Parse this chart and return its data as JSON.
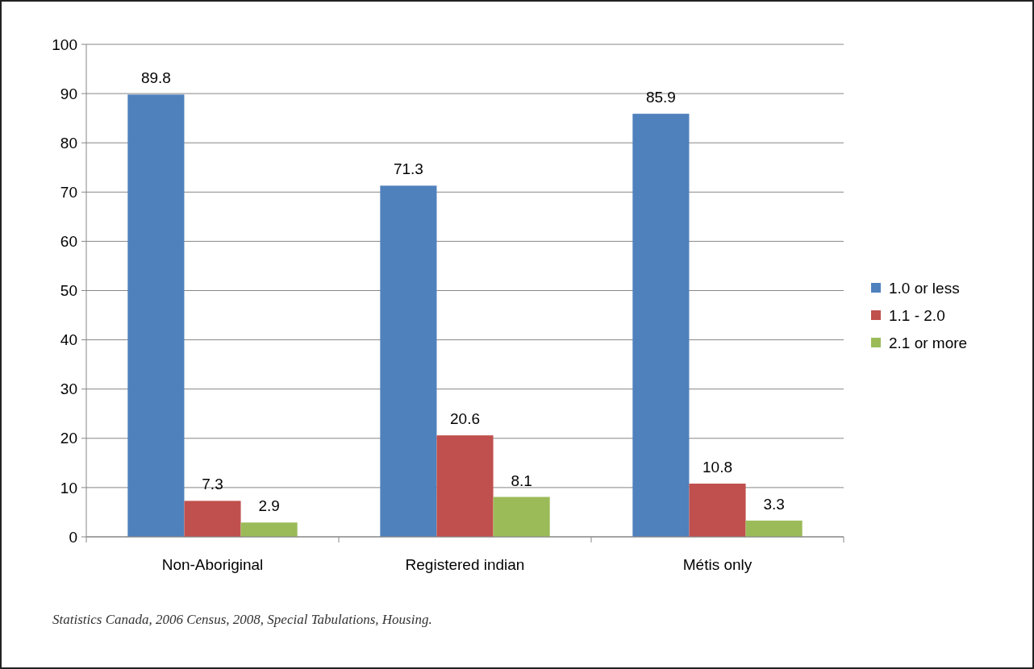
{
  "chart_data": {
    "type": "bar",
    "categories": [
      "Non-Aboriginal",
      "Registered indian",
      "Métis only"
    ],
    "series": [
      {
        "name": "1.0 or less",
        "color": "#4f81bd",
        "values": [
          89.8,
          71.3,
          85.9
        ]
      },
      {
        "name": "1.1 - 2.0",
        "color": "#c0504d",
        "values": [
          7.3,
          20.6,
          10.8
        ]
      },
      {
        "name": "2.1 or more",
        "color": "#9bbb59",
        "values": [
          2.9,
          8.1,
          3.3
        ]
      }
    ],
    "ylim": [
      0,
      100
    ],
    "yticks": [
      0,
      10,
      20,
      30,
      40,
      50,
      60,
      70,
      80,
      90,
      100
    ],
    "grid": "y",
    "legend": "right",
    "data_labels": true,
    "annotations": [
      "Statistics Canada, 2006 Census, 2008, Special Tabulations, Housing."
    ]
  }
}
